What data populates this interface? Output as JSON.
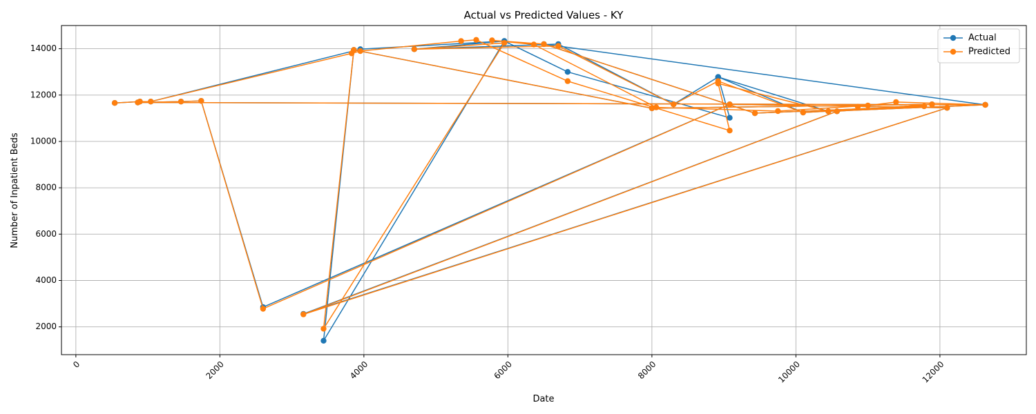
{
  "chart_data": {
    "type": "line",
    "title": "Actual vs Predicted Values - KY",
    "xlabel": "Date",
    "ylabel": "Number of Inpatient Beds",
    "xlim": [
      -200,
      13200
    ],
    "ylim": [
      800,
      15000
    ],
    "xticks": [
      0,
      2000,
      4000,
      6000,
      8000,
      10000,
      12000
    ],
    "yticks": [
      2000,
      4000,
      6000,
      8000,
      10000,
      12000,
      14000
    ],
    "grid": true,
    "legend_position": "top-right",
    "series": [
      {
        "name": "Actual",
        "color": "#1f77b4",
        "points": [
          [
            540,
            11660
          ],
          [
            890,
            11720
          ],
          [
            1040,
            11720
          ],
          [
            3950,
            13980
          ],
          [
            5950,
            14330
          ],
          [
            6830,
            13000
          ],
          [
            9080,
            11020
          ],
          [
            8920,
            12780
          ],
          [
            10450,
            11300
          ],
          [
            12630,
            11580
          ],
          [
            860,
            11680
          ],
          [
            1460,
            11720
          ],
          [
            1740,
            11750
          ],
          [
            2600,
            2850
          ],
          [
            9080,
            11600
          ],
          [
            12100,
            11450
          ],
          [
            3160,
            2560
          ],
          [
            10570,
            11300
          ],
          [
            11890,
            11600
          ],
          [
            8000,
            11430
          ],
          [
            3860,
            13950
          ],
          [
            3440,
            1400
          ],
          [
            5950,
            14330
          ],
          [
            4700,
            13980
          ],
          [
            6700,
            14200
          ],
          [
            8300,
            11600
          ],
          [
            8920,
            12780
          ],
          [
            10100,
            11250
          ],
          [
            11780,
            11520
          ],
          [
            9430,
            11220
          ],
          [
            6500,
            14200
          ],
          [
            12630,
            11580
          ]
        ]
      },
      {
        "name": "Predicted",
        "color": "#ff7f0e",
        "points": [
          [
            540,
            11660
          ],
          [
            890,
            11720
          ],
          [
            1040,
            11720
          ],
          [
            3830,
            13800
          ],
          [
            3950,
            13900
          ],
          [
            5350,
            14330
          ],
          [
            5560,
            14380
          ],
          [
            6830,
            12600
          ],
          [
            9080,
            10470
          ],
          [
            8920,
            12500
          ],
          [
            10450,
            11300
          ],
          [
            12630,
            11580
          ],
          [
            860,
            11680
          ],
          [
            1460,
            11720
          ],
          [
            1740,
            11750
          ],
          [
            2600,
            2780
          ],
          [
            9080,
            11600
          ],
          [
            12100,
            11450
          ],
          [
            3160,
            2540
          ],
          [
            10570,
            11300
          ],
          [
            11890,
            11600
          ],
          [
            8000,
            11430
          ],
          [
            3860,
            13950
          ],
          [
            3440,
            1920
          ],
          [
            5950,
            14250
          ],
          [
            4700,
            13980
          ],
          [
            6700,
            14120
          ],
          [
            8300,
            11600
          ],
          [
            8920,
            12600
          ],
          [
            10100,
            11250
          ],
          [
            11780,
            11520
          ],
          [
            9430,
            11220
          ],
          [
            6500,
            14200
          ],
          [
            5780,
            14360
          ],
          [
            6360,
            14180
          ],
          [
            8060,
            11470
          ],
          [
            9750,
            11310
          ],
          [
            11000,
            11550
          ],
          [
            10860,
            11500
          ],
          [
            11390,
            11700
          ],
          [
            12630,
            11580
          ]
        ]
      }
    ]
  }
}
